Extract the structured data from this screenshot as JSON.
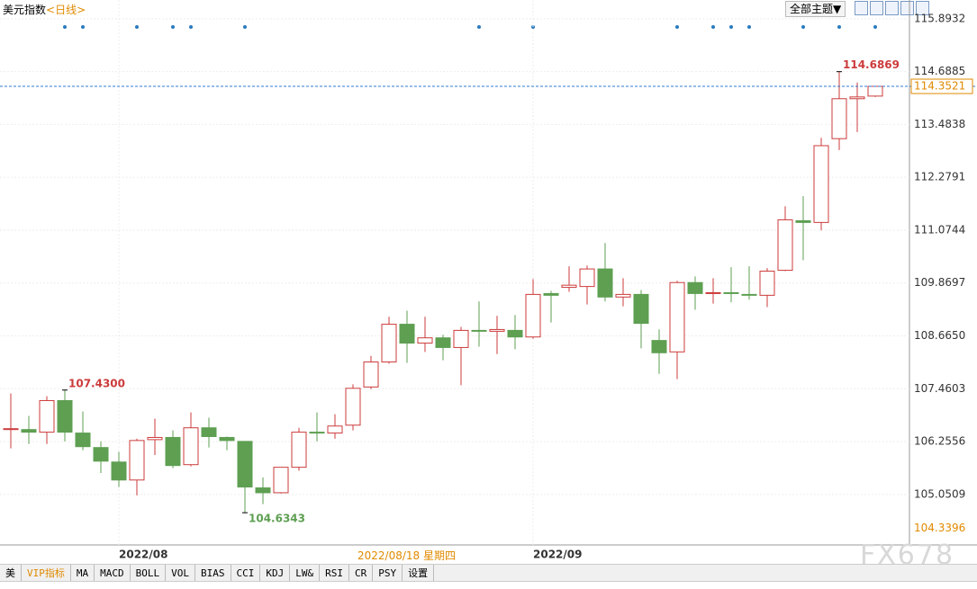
{
  "header": {
    "title": "美元指数",
    "period": "<日线>"
  },
  "toolbar": {
    "theme_button": "全部主题▼"
  },
  "chart_data": {
    "type": "candlestick",
    "categories": [
      null,
      null,
      null,
      null,
      null,
      null,
      "2022/08",
      null,
      null,
      null,
      null,
      null,
      null,
      null,
      null,
      null,
      null,
      null,
      null,
      null,
      null,
      null,
      null,
      null,
      null,
      null,
      null,
      null,
      null,
      "2022/09",
      null,
      null,
      null,
      null,
      null,
      null,
      null,
      null,
      null,
      null,
      null,
      null,
      null,
      null,
      null,
      null,
      null,
      null,
      null
    ],
    "crosshair_label": "2022/08/18 星期四",
    "series": {
      "open": [
        106.55,
        106.53,
        106.47,
        107.19,
        106.45,
        106.12,
        105.79,
        105.38,
        106.3,
        106.35,
        105.73,
        106.57,
        106.35,
        106.26,
        105.2,
        105.09,
        105.67,
        106.47,
        106.45,
        106.63,
        107.5,
        108.07,
        108.93,
        108.5,
        108.62,
        108.4,
        108.79,
        108.77,
        108.79,
        108.64,
        109.63,
        109.77,
        109.79,
        110.19,
        109.55,
        109.61,
        108.56,
        108.3,
        109.88,
        109.65,
        109.65,
        109.61,
        109.59,
        110.16,
        111.29,
        111.25,
        113.16,
        114.07,
        114.13
      ],
      "high": [
        107.35,
        106.84,
        107.29,
        107.43,
        106.94,
        106.26,
        106.02,
        106.32,
        106.78,
        106.51,
        106.92,
        106.8,
        106.37,
        106.26,
        105.44,
        105.67,
        106.57,
        106.92,
        106.88,
        107.56,
        108.21,
        109.1,
        109.24,
        109.1,
        108.69,
        108.87,
        109.45,
        109.12,
        109.14,
        109.96,
        109.69,
        110.25,
        110.27,
        110.78,
        109.98,
        109.71,
        108.81,
        109.92,
        110.02,
        109.98,
        110.23,
        110.25,
        110.21,
        111.62,
        111.85,
        113.18,
        114.6869,
        114.44,
        114.35
      ],
      "low": [
        106.1,
        106.2,
        106.2,
        106.26,
        106.06,
        105.54,
        105.22,
        105.03,
        105.95,
        105.65,
        105.69,
        106.12,
        106.06,
        104.6343,
        104.83,
        105.07,
        105.59,
        106.26,
        106.32,
        106.51,
        107.45,
        108.03,
        108.05,
        108.3,
        108.11,
        107.54,
        108.42,
        108.25,
        108.36,
        108.6,
        108.97,
        109.67,
        109.38,
        109.45,
        109.34,
        108.38,
        107.8,
        107.68,
        109.26,
        109.4,
        109.43,
        109.49,
        109.32,
        110.14,
        110.39,
        111.07,
        112.9,
        113.31,
        114.11
      ],
      "close": [
        106.55,
        106.47,
        107.19,
        106.47,
        106.14,
        105.81,
        105.38,
        106.28,
        106.35,
        105.71,
        106.57,
        106.37,
        106.28,
        105.22,
        105.09,
        105.67,
        106.47,
        106.45,
        106.61,
        107.47,
        108.07,
        108.93,
        108.5,
        108.62,
        108.4,
        108.79,
        108.77,
        108.81,
        108.64,
        109.61,
        109.59,
        109.82,
        110.19,
        109.55,
        109.61,
        108.95,
        108.28,
        109.88,
        109.63,
        109.65,
        109.63,
        109.59,
        110.14,
        111.31,
        111.25,
        113.0,
        114.07,
        114.11,
        114.3521
      ]
    },
    "up_color": "#cc3b3b",
    "down_color": "#5e9f52",
    "annotations": [
      {
        "value": 107.43,
        "label": "107.4300",
        "color": "#cc3b3b"
      },
      {
        "value": 104.6343,
        "label": "104.6343",
        "color": "#5e9f52"
      },
      {
        "value": 114.6869,
        "label": "114.6869",
        "color": "#cc3b3b"
      }
    ],
    "last_price": {
      "value": 114.3521,
      "label": "114.3521",
      "color": "#e08a00",
      "line_color": "#2f7ad0"
    },
    "min_price": {
      "value": 104.3396,
      "label": "104.3396",
      "color": "#e08a00"
    },
    "ylim": [
      103.9,
      116.32
    ],
    "yticks": [
      115.8932,
      114.6885,
      113.4838,
      112.2791,
      111.0744,
      109.8697,
      {
        "value": 108.665,
        "label": "108.6650"
      },
      107.4603,
      106.2556,
      105.0509
    ],
    "grid": true
  },
  "tabs": [
    "美",
    "VIP指标",
    "MA",
    "MACD",
    "BOLL",
    "VOL",
    "BIAS",
    "CCI",
    "KDJ",
    "LW&",
    "RSI",
    "CR",
    "PSY",
    "设置"
  ],
  "watermark": "FX678"
}
